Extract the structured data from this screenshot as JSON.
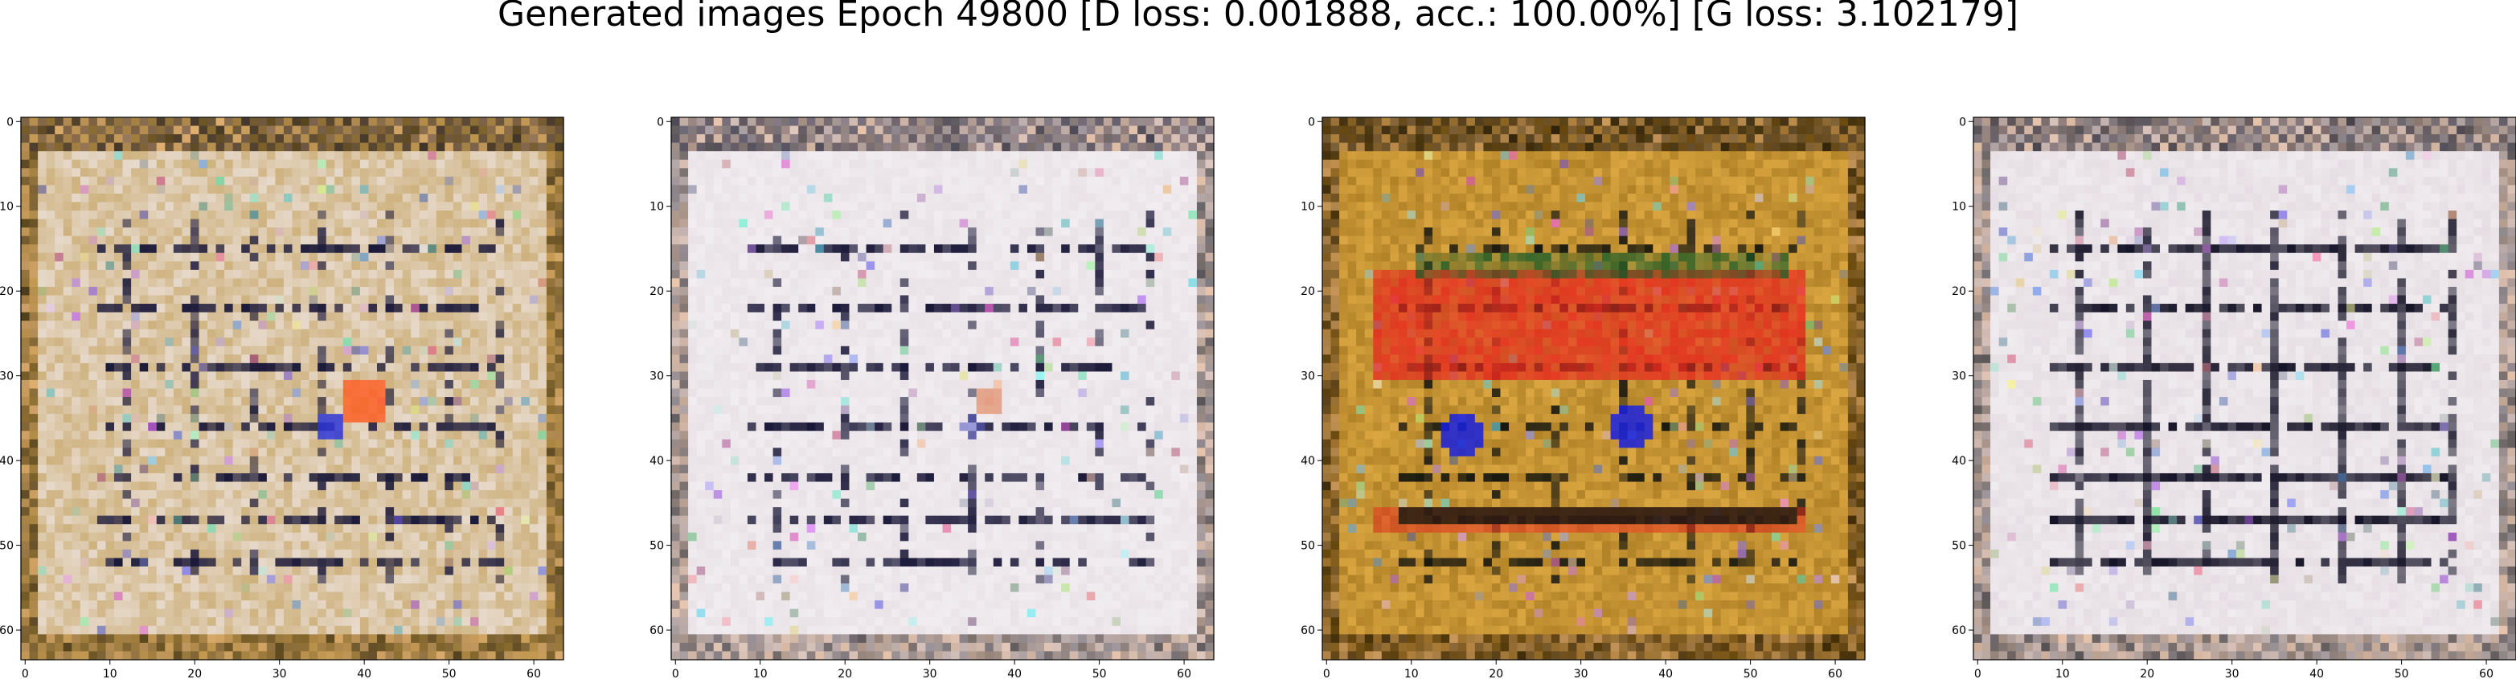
{
  "chart_data": {
    "type": "heatmap",
    "title": "Generated images Epoch 49800 [D loss: 0.001888, acc.: 100.00%] [G loss: 3.102179]",
    "panels": [
      {
        "name": "",
        "palette": {
          "base": "#c6a565",
          "border": "#b08a3a",
          "dark": "#1c1a3a",
          "light": "#efe6e4",
          "accent1": "#ff5a1e",
          "accent2": "#2e36d8"
        },
        "xlim": [
          -0.5,
          63.5
        ],
        "ylim": [
          63.5,
          -0.5
        ],
        "xticks": [
          0,
          10,
          20,
          30,
          40,
          50,
          60
        ],
        "yticks": [
          0,
          10,
          20,
          30,
          40,
          50,
          60
        ]
      },
      {
        "name": "",
        "palette": {
          "base": "#e6dfe4",
          "border": "#cfc6cf",
          "dark": "#1a1838",
          "light": "#f4f0f3",
          "accent1": "#e07a50",
          "accent2": "#5e63c8"
        },
        "xlim": [
          -0.5,
          63.5
        ],
        "ylim": [
          63.5,
          -0.5
        ],
        "xticks": [
          0,
          10,
          20,
          30,
          40,
          50,
          60
        ],
        "yticks": [
          0,
          10,
          20,
          30,
          40,
          50,
          60
        ]
      },
      {
        "name": "",
        "palette": {
          "base": "#a4761e",
          "border": "#8a5f10",
          "dark": "#181810",
          "light": "#e8b24a",
          "accent1": "#e8281e",
          "accent2": "#1820e0"
        },
        "xlim": [
          -0.5,
          63.5
        ],
        "ylim": [
          63.5,
          -0.5
        ],
        "xticks": [
          0,
          10,
          20,
          30,
          40,
          50,
          60
        ],
        "yticks": [
          0,
          10,
          20,
          30,
          40,
          50,
          60
        ]
      },
      {
        "name": "",
        "palette": {
          "base": "#e2dae0",
          "border": "#c9c0c8",
          "dark": "#161428",
          "light": "#f3eff2",
          "accent1": "#7a6a6e",
          "accent2": "#3c3a64"
        },
        "xlim": [
          -0.5,
          63.5
        ],
        "ylim": [
          63.5,
          -0.5
        ],
        "xticks": [
          0,
          10,
          20,
          30,
          40,
          50,
          60
        ],
        "yticks": [
          0,
          10,
          20,
          30,
          40,
          50,
          60
        ]
      }
    ]
  }
}
